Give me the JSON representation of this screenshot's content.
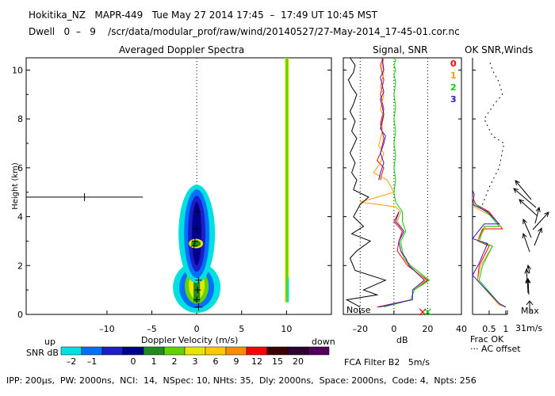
{
  "header": {
    "line1": "Hokitika_NZ   MAPR-449   Tue May 27 2014 17:45  –  17:49 UT 10:45 MST",
    "line2": "Dwell   0  –   9    /scr/data/modular_prof/raw/wind/20140527/27-May-2014_17-45-01.cor.nc"
  },
  "footer": {
    "params": "IPP: 200µs,  PW: 2000ns,  NCI:  14,  NSpec: 10, NHts: 35,  Dly: 2000ns,  Space: 2000ns,  Code: 4,  Npts: 256",
    "fca": "FCA Filter B2   5m/s"
  },
  "chart_data": [
    {
      "type": "heatmap",
      "title": "Averaged Doppler Spectra",
      "xlabel": "Doppler Velocity (m/s)",
      "ylabel": "Height (km)",
      "x_ticks": [
        -10,
        -5,
        0,
        5,
        10
      ],
      "y_ticks": [
        0,
        2,
        4,
        6,
        8,
        10
      ],
      "xlim": [
        -19,
        15
      ],
      "ylim": [
        0,
        10.5
      ],
      "left_label": "up",
      "right_label": "down",
      "zero_line_x": 0,
      "spectral_peaks": [
        {
          "height": 0.6,
          "velocity": 0.0
        },
        {
          "height": 1.0,
          "velocity": 0.1
        },
        {
          "height": 1.4,
          "velocity": 0.2
        },
        {
          "height": 2.8,
          "velocity": -0.3
        },
        {
          "height": 3.0,
          "velocity": -0.2
        },
        {
          "height": 3.5,
          "velocity": 0.0
        },
        {
          "height": 4.2,
          "velocity": 0.1
        }
      ],
      "echo_line": {
        "velocity": 10,
        "height_range": [
          0.5,
          10.5
        ]
      },
      "clutter_line": {
        "height": 4.8,
        "velocity_range": [
          -19,
          -6
        ]
      },
      "colorbar": {
        "label": "SNR dB",
        "colors": [
          "#00e0e0",
          "#0070ff",
          "#1e1ec8",
          "#000090",
          "#1e8c1e",
          "#64d200",
          "#e6e600",
          "#ffc800",
          "#ff8c00",
          "#ff0000",
          "#3c0000",
          "#2d0032",
          "#50005a"
        ],
        "tick_labels": [
          "–2",
          "–1",
          "0",
          "1",
          "2",
          "3",
          "6",
          "9",
          "12",
          "15",
          "20"
        ]
      }
    },
    {
      "type": "line",
      "title": "Signal, SNR",
      "xlabel": "dB",
      "x_ticks": [
        -20,
        0,
        20,
        40
      ],
      "xlim": [
        -30,
        40
      ],
      "ylim": [
        0,
        10.5
      ],
      "noise_label": "Noise",
      "dotted_x": [
        -20,
        0,
        20
      ],
      "series": [
        {
          "name": "0",
          "color": "#ff0000",
          "x": [
            -10,
            10,
            12,
            20,
            8,
            5,
            2,
            3,
            5,
            0,
            3,
            null,
            -8,
            -7,
            -6,
            -10,
            -8,
            -7,
            -6,
            -7,
            -8,
            -7,
            -6,
            -7,
            -8,
            -7,
            -6,
            -7,
            -8,
            -7,
            -6
          ],
          "y": [
            0.3,
            0.6,
            1.0,
            1.4,
            2.0,
            2.3,
            2.6,
            3.0,
            3.4,
            3.8,
            4.2,
            null,
            5.5,
            5.8,
            6.0,
            6.3,
            6.6,
            6.9,
            7.2,
            7.5,
            7.8,
            8.1,
            8.4,
            8.7,
            9.0,
            9.3,
            9.6,
            9.9,
            10.2,
            10.4,
            10.5
          ]
        },
        {
          "name": "1",
          "color": "#ff9b00",
          "x": [
            -8,
            10,
            12,
            19,
            9,
            6,
            4,
            3,
            6,
            2,
            4,
            1,
            -20,
            0,
            -4,
            -12,
            -8,
            -6,
            -9,
            -8,
            -7,
            -7,
            -6,
            -8,
            -7,
            -6,
            -8,
            -7,
            -6,
            -7,
            -6
          ],
          "y": [
            0.3,
            0.6,
            1.0,
            1.4,
            2.0,
            2.3,
            2.6,
            3.0,
            3.4,
            3.8,
            4.2,
            4.4,
            4.6,
            5.0,
            5.5,
            5.8,
            6.2,
            6.6,
            6.9,
            7.2,
            7.5,
            7.8,
            8.1,
            8.4,
            8.7,
            9.0,
            9.3,
            9.6,
            9.9,
            10.2,
            10.5
          ]
        },
        {
          "name": "2",
          "color": "#00d200",
          "x": [
            -6,
            10,
            12,
            21,
            10,
            6,
            5,
            4,
            7,
            5,
            5,
            1,
            0,
            1,
            0,
            1,
            0,
            1,
            0,
            1,
            0,
            1,
            0,
            1,
            0,
            1,
            0
          ],
          "y": [
            0.3,
            0.6,
            1.0,
            1.4,
            2.0,
            2.3,
            2.6,
            3.0,
            3.4,
            3.8,
            4.2,
            4.6,
            5.0,
            5.5,
            6.0,
            6.5,
            7.0,
            7.5,
            8.0,
            8.5,
            9.0,
            9.5,
            9.8,
            10.0,
            10.2,
            10.4,
            10.5
          ]
        },
        {
          "name": "3",
          "color": "#3214c8",
          "x": [
            -9,
            11,
            11,
            18,
            9,
            7,
            4,
            3,
            6,
            1,
            3,
            null,
            -9,
            -8,
            -6,
            -8,
            -6,
            -5,
            -8,
            -7,
            -6,
            -7,
            -8,
            -6,
            -7,
            -8,
            -6,
            -7
          ],
          "y": [
            0.3,
            0.6,
            1.0,
            1.4,
            2.0,
            2.3,
            2.6,
            3.0,
            3.4,
            3.8,
            4.2,
            null,
            5.5,
            5.8,
            6.2,
            6.6,
            7.0,
            7.3,
            7.6,
            7.9,
            8.2,
            8.5,
            8.8,
            9.1,
            9.4,
            9.7,
            10.0,
            10.5
          ]
        },
        {
          "name": "Noise",
          "color": "#000000",
          "x": [
            -20,
            -28,
            -10,
            -18,
            -5,
            -23,
            -26,
            -22,
            -14,
            -25,
            -18,
            -24,
            -20,
            -15,
            -24,
            -22,
            -25,
            -23,
            -26,
            -24,
            -22,
            -25,
            -23,
            -26,
            -24,
            -22,
            -25,
            -27,
            -24,
            -23,
            -26
          ],
          "y": [
            0.3,
            0.6,
            0.8,
            1.0,
            1.4,
            1.8,
            2.3,
            2.6,
            3.0,
            3.3,
            3.6,
            4.0,
            4.5,
            4.8,
            5.1,
            5.5,
            5.8,
            6.2,
            6.6,
            6.9,
            7.2,
            7.5,
            7.9,
            8.3,
            8.6,
            9.0,
            9.3,
            9.6,
            9.9,
            10.2,
            10.5
          ]
        }
      ],
      "markers": [
        {
          "x": 17,
          "y": 0.1,
          "color": "#ff0000"
        },
        {
          "x": 20,
          "y": 0.1,
          "color": "#00d200"
        }
      ]
    },
    {
      "type": "line",
      "title": "OK SNR,Winds",
      "xlabel": "Frac OK",
      "x_ticks": [
        "0.5",
        "1"
      ],
      "xlim": [
        0,
        1.05
      ],
      "ylim": [
        0,
        10.5
      ],
      "legend": [
        {
          "label": "0",
          "color": "#ff0000"
        },
        {
          "label": "1",
          "color": "#ff9b00"
        },
        {
          "label": "2",
          "color": "#00d200"
        },
        {
          "label": "3",
          "color": "#3214c8"
        }
      ],
      "note": "··· AC offset",
      "max_wind_label": "Max",
      "max_wind_value": "31m/s",
      "series": [
        {
          "name": "0",
          "color": "#ff0000",
          "x": [
            1.0,
            0.8,
            0.15,
            0.2,
            0.5,
            0.15,
            0.3,
            0.9,
            0.5,
            0.1,
            0.0
          ],
          "y": [
            0.3,
            0.4,
            1.4,
            2.0,
            2.8,
            3.0,
            3.5,
            3.5,
            4.2,
            4.5,
            4.8
          ]
        },
        {
          "name": "1",
          "color": "#ff9b00",
          "x": [
            1.0,
            0.8,
            0.15,
            0.25,
            0.6,
            0.15,
            0.4,
            0.85,
            0.6,
            0.05,
            0.0
          ],
          "y": [
            0.3,
            0.4,
            1.4,
            2.0,
            2.8,
            3.0,
            3.6,
            3.6,
            4.0,
            4.4,
            4.8
          ]
        },
        {
          "name": "2",
          "color": "#00d200",
          "x": [
            1.0,
            0.8,
            0.2,
            0.3,
            0.6,
            0.2,
            0.35,
            0.8,
            0.5,
            0.0
          ],
          "y": [
            0.3,
            0.45,
            1.4,
            2.0,
            2.8,
            3.0,
            3.6,
            3.6,
            4.1,
            4.6
          ]
        },
        {
          "name": "3",
          "color": "#3214c8",
          "x": [
            1.0,
            0.8,
            0.0,
            0.2,
            0.45,
            0.0,
            0.35,
            0.8,
            0.45,
            0.0,
            0.05,
            0.0
          ],
          "y": [
            0.3,
            0.45,
            1.6,
            2.1,
            2.9,
            3.1,
            3.7,
            3.7,
            4.2,
            4.5,
            4.9,
            5.1
          ]
        },
        {
          "name": "AC offset",
          "color": "#000000",
          "dotted": true,
          "x": [
            0.3,
            0.5,
            0.8,
            0.95,
            0.6,
            0.35,
            0.65,
            0.9,
            0.8,
            0.6,
            0.5
          ],
          "y": [
            4.5,
            5.2,
            6.0,
            7.0,
            7.3,
            8.0,
            8.6,
            9.0,
            9.5,
            10.0,
            10.4
          ]
        }
      ],
      "wind_barbs_heights": [
        0.6,
        0.9,
        1.2,
        1.6,
        2.9,
        3.1,
        3.3,
        3.6,
        3.9,
        4.3,
        4.6,
        5.1
      ]
    }
  ]
}
